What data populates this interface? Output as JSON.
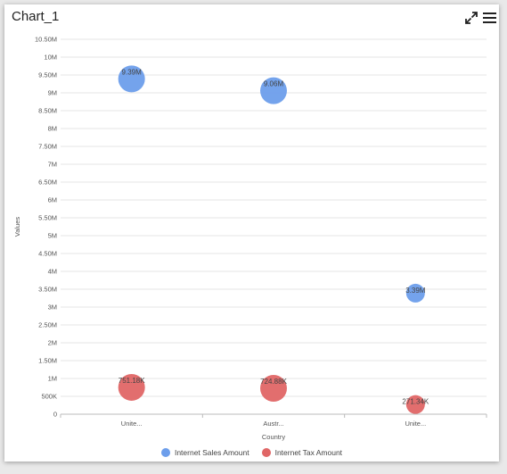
{
  "window": {
    "title": "Chart_1",
    "expand_icon": "expand-arrows-icon",
    "menu_icon": "hamburger-menu-icon"
  },
  "chart_data": {
    "type": "bubble",
    "categories": [
      "Unite...",
      "Austr...",
      "Unite..."
    ],
    "xlabel": "Country",
    "ylabel": "Values",
    "ylim": [
      0,
      10500000
    ],
    "y_ticks": [
      "0",
      "500K",
      "1M",
      "1.50M",
      "2M",
      "2.50M",
      "3M",
      "3.50M",
      "4M",
      "4.50M",
      "5M",
      "5.50M",
      "6M",
      "6.50M",
      "7M",
      "7.50M",
      "8M",
      "8.50M",
      "9M",
      "9.50M",
      "10M",
      "10.50M"
    ],
    "grid": true,
    "legend_position": "bottom",
    "series": [
      {
        "name": "Internet Sales Amount",
        "color": "#6d9eeb",
        "values": [
          9390000,
          9060000,
          3390000
        ],
        "labels": [
          "9.39M",
          "9.06M",
          "3.39M"
        ],
        "sizes": [
          3,
          3,
          1.5
        ]
      },
      {
        "name": "Internet Tax Amount",
        "color": "#e06666",
        "values": [
          751180,
          724880,
          271340
        ],
        "labels": [
          "751.18K",
          "724.88K",
          "271.34K"
        ],
        "sizes": [
          3,
          3,
          1.5
        ]
      }
    ]
  }
}
